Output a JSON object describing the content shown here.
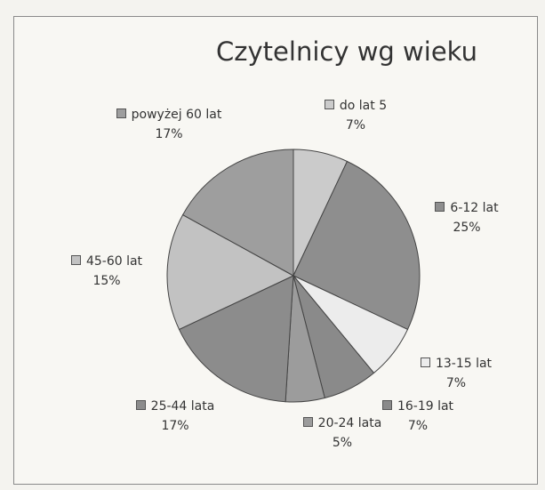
{
  "chart_data": {
    "type": "pie",
    "title": "Czytelnicy wg wieku",
    "categories": [
      "do lat 5",
      "6-12 lat",
      "13-15 lat",
      "16-19 lat",
      "20-24 lata",
      "25-44 lata",
      "45-60 lat",
      "powyżej 60 lat"
    ],
    "values": [
      7,
      25,
      7,
      7,
      5,
      17,
      15,
      17
    ],
    "value_labels": [
      "7%",
      "25%",
      "7%",
      "7%",
      "5%",
      "17%",
      "15%",
      "17%"
    ],
    "colors": [
      "#cbcbcb",
      "#8e8e8e",
      "#ececec",
      "#8a8a8a",
      "#9c9c9c",
      "#8c8c8c",
      "#c2c2c2",
      "#9e9e9e"
    ]
  }
}
